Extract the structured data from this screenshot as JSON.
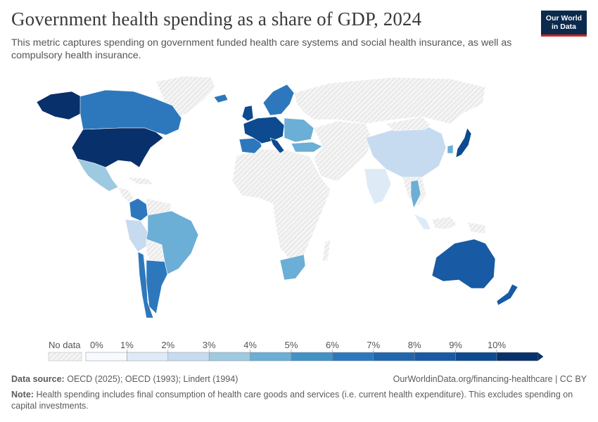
{
  "header": {
    "title": "Government health spending as a share of GDP, 2024",
    "subtitle": "This metric captures spending on government funded health care systems and social health insurance, as well as compulsory health insurance."
  },
  "logo": {
    "line1": "Our World",
    "line2": "in Data"
  },
  "legend": {
    "no_data_label": "No data",
    "ticks": [
      "0%",
      "1%",
      "2%",
      "3%",
      "4%",
      "5%",
      "6%",
      "7%",
      "8%",
      "9%",
      "10%"
    ],
    "colors": [
      "#f7fbff",
      "#deebf7",
      "#c6dbef",
      "#9ecae1",
      "#6baed6",
      "#4292c6",
      "#2d78bd",
      "#2166ac",
      "#185aa3",
      "#0d4a8f",
      "#08306b"
    ]
  },
  "map_data": {
    "region_colors": {
      "north_america_canada": "#2d78bd",
      "usa": "#08306b",
      "alaska": "#08306b",
      "mexico": "#9ecae1",
      "colombia": "#2d78bd",
      "ecuador_peru": "#c6dbef",
      "brazil": "#6baed6",
      "chile": "#2d78bd",
      "argentina": "#2d78bd",
      "western_europe": "#0d4a8f",
      "iberia": "#2d78bd",
      "nordics": "#2d78bd",
      "eastern_europe": "#6baed6",
      "turkey": "#6baed6",
      "china": "#c6dbef",
      "india": "#deebf7",
      "thailand": "#6baed6",
      "japan": "#0d4a8f",
      "korea": "#6baed6",
      "indonesia": "#deebf7",
      "australia": "#185aa3",
      "new_zealand": "#185aa3",
      "south_africa": "#6baed6",
      "no_data": "#f0f0f0"
    }
  },
  "footer": {
    "source_label": "Data source:",
    "source_text": "OECD (2025); OECD (1993); Lindert (1994)",
    "url_text": "OurWorldinData.org/financing-healthcare | CC BY",
    "note_label": "Note:",
    "note_text": "Health spending includes final consumption of health care goods and services (i.e. current health expenditure). This excludes spending on capital investments."
  }
}
